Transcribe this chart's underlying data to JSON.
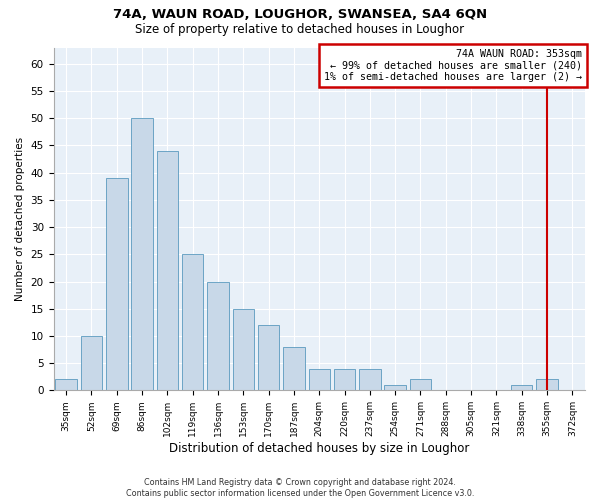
{
  "title1": "74A, WAUN ROAD, LOUGHOR, SWANSEA, SA4 6QN",
  "title2": "Size of property relative to detached houses in Loughor",
  "xlabel": "Distribution of detached houses by size in Loughor",
  "ylabel": "Number of detached properties",
  "categories": [
    "35sqm",
    "52sqm",
    "69sqm",
    "86sqm",
    "102sqm",
    "119sqm",
    "136sqm",
    "153sqm",
    "170sqm",
    "187sqm",
    "204sqm",
    "220sqm",
    "237sqm",
    "254sqm",
    "271sqm",
    "288sqm",
    "305sqm",
    "321sqm",
    "338sqm",
    "355sqm",
    "372sqm"
  ],
  "values": [
    2,
    10,
    39,
    50,
    44,
    25,
    20,
    15,
    12,
    8,
    4,
    4,
    4,
    1,
    2,
    0,
    0,
    0,
    1,
    2,
    0
  ],
  "bar_color": "#c8d8e8",
  "bar_edge_color": "#5a9abf",
  "vline_x_idx": 19,
  "vline_color": "#cc0000",
  "annotation_line1": "74A WAUN ROAD: 353sqm",
  "annotation_line2": "← 99% of detached houses are smaller (240)",
  "annotation_line3": "1% of semi-detached houses are larger (2) →",
  "annotation_box_color": "#cc0000",
  "ylim": [
    0,
    63
  ],
  "yticks": [
    0,
    5,
    10,
    15,
    20,
    25,
    30,
    35,
    40,
    45,
    50,
    55,
    60
  ],
  "grid_color": "#ffffff",
  "background_color": "#e8f0f8",
  "footer1": "Contains HM Land Registry data © Crown copyright and database right 2024.",
  "footer2": "Contains public sector information licensed under the Open Government Licence v3.0."
}
